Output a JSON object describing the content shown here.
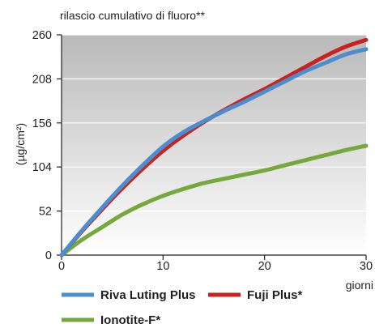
{
  "chart_data": {
    "type": "line",
    "title": "rilascio cumulativo di fluoro**",
    "xlabel": "giorni",
    "ylabel": "(µg/cm²)",
    "xlim": [
      0,
      30
    ],
    "ylim": [
      0,
      260
    ],
    "x_ticks": [
      0,
      10,
      20,
      30
    ],
    "y_ticks": [
      0,
      52,
      104,
      156,
      208,
      260
    ],
    "x_tick_labels": [
      "0",
      "10",
      "20",
      "30"
    ],
    "y_tick_labels": [
      "0",
      "52",
      "104",
      "156",
      "208",
      "260"
    ],
    "grid": "horizontal",
    "background": "gradient-gray",
    "legend_position": "bottom",
    "series": [
      {
        "name": "Riva Luting Plus",
        "color": "#4a8ed0",
        "x": [
          0,
          2,
          4,
          6,
          8,
          10,
          12,
          14,
          16,
          18,
          20,
          22,
          24,
          26,
          28,
          30
        ],
        "y": [
          0,
          29,
          56,
          82,
          106,
          128,
          145,
          158,
          170,
          181,
          193,
          205,
          217,
          227,
          237,
          243
        ]
      },
      {
        "name": "Fuji Plus*",
        "color": "#c9221f",
        "x": [
          0,
          2,
          4,
          6,
          8,
          10,
          12,
          14,
          16,
          18,
          20,
          22,
          24,
          26,
          28,
          30
        ],
        "y": [
          0,
          28,
          54,
          79,
          102,
          123,
          141,
          157,
          171,
          184,
          196,
          209,
          222,
          235,
          246,
          254
        ]
      },
      {
        "name": "Ionotite-F*",
        "color": "#76a93b",
        "x": [
          0,
          2,
          4,
          6,
          8,
          10,
          12,
          14,
          16,
          18,
          20,
          22,
          24,
          26,
          28,
          30
        ],
        "y": [
          0,
          18,
          33,
          48,
          60,
          70,
          78,
          85,
          90,
          95,
          100,
          106,
          112,
          118,
          124,
          129
        ]
      }
    ]
  }
}
